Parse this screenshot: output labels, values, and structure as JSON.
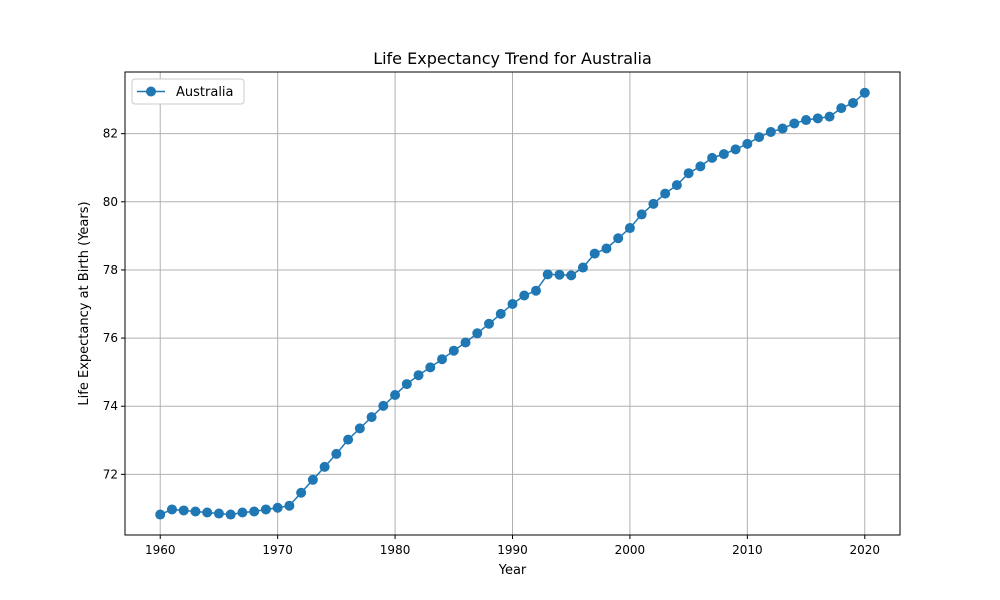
{
  "chart_data": {
    "type": "line",
    "title": "Life Expectancy Trend for Australia",
    "xlabel": "Year",
    "ylabel": "Life Expectancy at Birth (Years)",
    "xlim": [
      1957,
      2023
    ],
    "ylim": [
      70.22,
      83.81
    ],
    "xticks": [
      1960,
      1970,
      1980,
      1990,
      2000,
      2010,
      2020
    ],
    "yticks": [
      72,
      74,
      76,
      78,
      80,
      82
    ],
    "grid": true,
    "legend_position": "top-left",
    "series": [
      {
        "name": "Australia",
        "color": "#1f77b4",
        "marker": "circle",
        "x": [
          1960,
          1961,
          1962,
          1963,
          1964,
          1965,
          1966,
          1967,
          1968,
          1969,
          1970,
          1971,
          1972,
          1973,
          1974,
          1975,
          1976,
          1977,
          1978,
          1979,
          1980,
          1981,
          1982,
          1983,
          1984,
          1985,
          1986,
          1987,
          1988,
          1989,
          1990,
          1991,
          1992,
          1993,
          1994,
          1995,
          1996,
          1997,
          1998,
          1999,
          2000,
          2001,
          2002,
          2003,
          2004,
          2005,
          2006,
          2007,
          2008,
          2009,
          2010,
          2011,
          2012,
          2013,
          2014,
          2015,
          2016,
          2017,
          2018,
          2019,
          2020
        ],
        "y": [
          70.82,
          70.97,
          70.94,
          70.91,
          70.88,
          70.85,
          70.82,
          70.88,
          70.91,
          70.97,
          71.02,
          71.08,
          71.46,
          71.84,
          72.22,
          72.6,
          73.02,
          73.35,
          73.68,
          74.01,
          74.33,
          74.65,
          74.91,
          75.14,
          75.38,
          75.63,
          75.87,
          76.14,
          76.42,
          76.71,
          77.0,
          77.25,
          77.39,
          77.87,
          77.86,
          77.84,
          78.07,
          78.48,
          78.63,
          78.93,
          79.23,
          79.63,
          79.94,
          80.24,
          80.49,
          80.84,
          81.04,
          81.29,
          81.4,
          81.54,
          81.7,
          81.9,
          82.05,
          82.15,
          82.3,
          82.4,
          82.45,
          82.5,
          82.75,
          82.9,
          83.2
        ]
      }
    ]
  }
}
